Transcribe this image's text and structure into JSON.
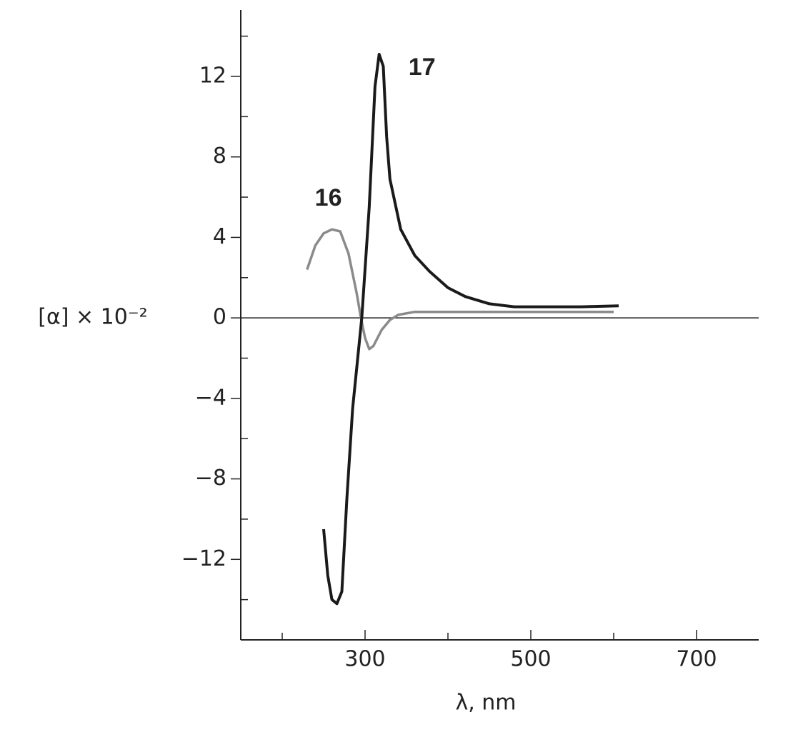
{
  "chart_data": {
    "type": "line",
    "x_label": "λ, nm",
    "y_label": "[α] × 10⁻²",
    "xlim": [
      150,
      775
    ],
    "ylim": [
      -16,
      15.3
    ],
    "xticks": [
      300,
      500,
      700
    ],
    "xminor": [
      200,
      400,
      600
    ],
    "yticks": [
      12,
      8,
      4,
      0,
      {
        "value": -4,
        "label": "−4"
      },
      {
        "value": -8,
        "label": "−8"
      },
      {
        "value": -12,
        "label": "−12"
      }
    ],
    "yminor": [
      14,
      10,
      6,
      2,
      -2,
      -6,
      -10,
      -14
    ],
    "series": [
      {
        "name": "16",
        "color": "#8a8a8a",
        "x": [
          230,
          240,
          250,
          260,
          270,
          280,
          290,
          295,
          300,
          305,
          310,
          320,
          330,
          340,
          360,
          400,
          500,
          600
        ],
        "values": [
          2.4,
          3.6,
          4.2,
          4.4,
          4.3,
          3.2,
          1.2,
          0,
          -1.0,
          -1.55,
          -1.4,
          -0.6,
          -0.1,
          0.15,
          0.3,
          0.3,
          0.3,
          0.3
        ]
      },
      {
        "name": "17",
        "color": "#1a1a1a",
        "x": [
          250,
          255,
          260,
          266,
          272,
          278,
          285,
          296,
          305,
          312,
          317,
          322,
          326,
          330,
          343,
          360,
          378,
          400,
          421,
          450,
          480,
          520,
          560,
          606
        ],
        "values": [
          -10.5,
          -12.8,
          -14.0,
          -14.2,
          -13.6,
          -9,
          -4.5,
          0,
          5.5,
          11.5,
          13.1,
          12.5,
          9,
          6.9,
          4.4,
          3.1,
          2.3,
          1.5,
          1.06,
          0.7,
          0.55,
          0.55,
          0.55,
          0.6
        ]
      }
    ]
  }
}
